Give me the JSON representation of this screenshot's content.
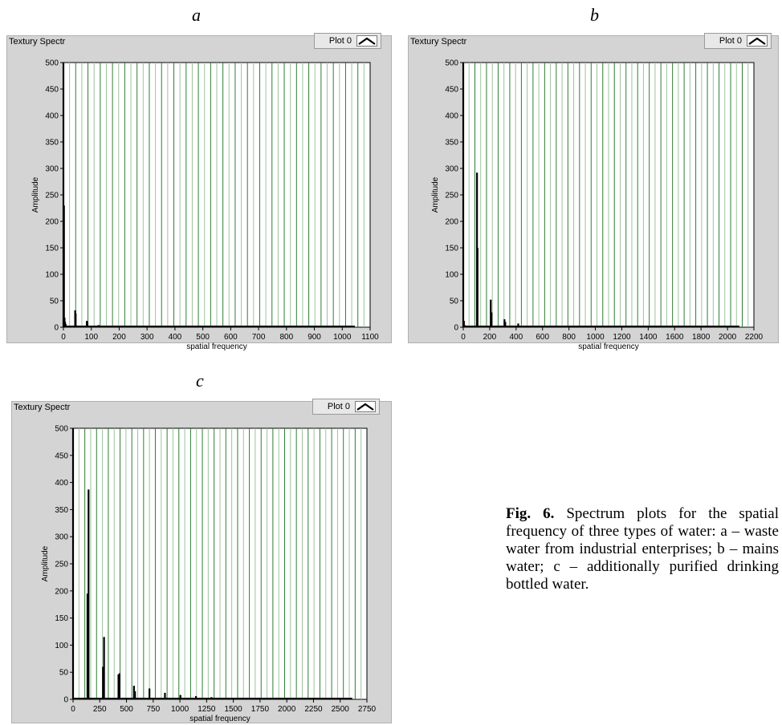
{
  "figure": {
    "caption_label": "Fig. 6.",
    "caption_text": " Spectrum plots for the spatial frequency of three types of water: a – waste water from industrial enterprises; b – mains water; c – additionally purified drinking bottled water."
  },
  "chart_data": [
    {
      "panel_letter": "a",
      "type": "bar",
      "title": "Textury Spectr",
      "legend": "Plot 0",
      "xlabel": "spatial frequency",
      "ylabel": "Amplitude",
      "xlim": [
        0,
        1100
      ],
      "ylim": [
        0,
        500
      ],
      "xticks": [
        0,
        100,
        200,
        300,
        400,
        500,
        600,
        700,
        800,
        900,
        1000,
        1100
      ],
      "yticks": [
        0,
        50,
        100,
        150,
        200,
        250,
        300,
        350,
        400,
        450,
        500
      ],
      "x": [
        0,
        2,
        4,
        6,
        8,
        42,
        44,
        84,
        86,
        126,
        168
      ],
      "y": [
        500,
        230,
        18,
        10,
        6,
        32,
        26,
        12,
        10,
        4,
        3
      ]
    },
    {
      "panel_letter": "b",
      "type": "bar",
      "title": "Textury Spectr",
      "legend": "Plot 0",
      "xlabel": "spatial frequency",
      "ylabel": "Amplitude",
      "xlim": [
        0,
        2200
      ],
      "ylim": [
        0,
        500
      ],
      "xticks": [
        0,
        200,
        400,
        600,
        800,
        1000,
        1200,
        1400,
        1600,
        1800,
        2000,
        2200
      ],
      "yticks": [
        0,
        50,
        100,
        150,
        200,
        250,
        300,
        350,
        400,
        450,
        500
      ],
      "x": [
        0,
        5,
        10,
        104,
        108,
        208,
        214,
        312,
        318,
        416,
        520,
        624,
        728,
        832,
        936,
        1040,
        1144
      ],
      "y": [
        500,
        12,
        4,
        292,
        150,
        52,
        28,
        15,
        10,
        7,
        3,
        3,
        2,
        2,
        2,
        2,
        2
      ]
    },
    {
      "panel_letter": "c",
      "type": "bar",
      "title": "Textury Spectr",
      "legend": "Plot 0",
      "xlabel": "spatial frequency",
      "ylabel": "Amplitude",
      "xlim": [
        0,
        2750
      ],
      "ylim": [
        0,
        500
      ],
      "xticks": [
        0,
        250,
        500,
        750,
        1000,
        1250,
        1500,
        1750,
        2000,
        2250,
        2500,
        2750
      ],
      "yticks": [
        0,
        50,
        100,
        150,
        200,
        250,
        300,
        350,
        400,
        450,
        500
      ],
      "x": [
        0,
        135,
        145,
        280,
        290,
        425,
        435,
        570,
        580,
        715,
        860,
        1005,
        1150,
        1295,
        1440,
        1585,
        1730,
        1875,
        2020,
        2165,
        2310
      ],
      "y": [
        500,
        195,
        387,
        60,
        115,
        46,
        48,
        25,
        15,
        20,
        12,
        8,
        6,
        4,
        3,
        3,
        3,
        2,
        2,
        2,
        2
      ]
    }
  ]
}
